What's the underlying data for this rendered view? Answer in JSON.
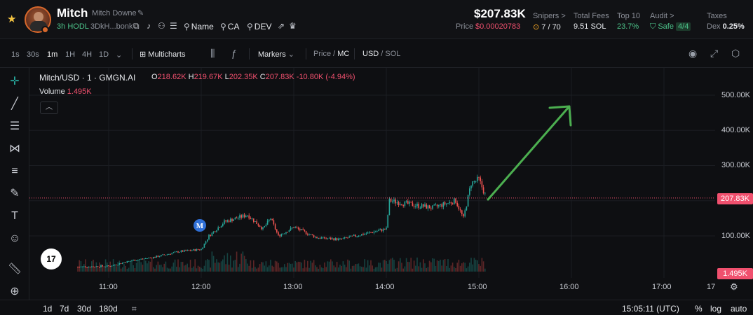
{
  "header": {
    "token_name": "Mitch",
    "token_fullname": "Mitch Downe",
    "age": "3h",
    "hodl": "HODL",
    "address": "3DkH...bonk",
    "links": [
      "Name",
      "CA",
      "DEV"
    ],
    "market_cap": "$207.83K",
    "price_label": "Price",
    "price_value": "$0.00020783",
    "stats": [
      {
        "label": "Snipers >",
        "value": "7 / 70"
      },
      {
        "label": "Total Fees",
        "value": "9.51 SOL"
      },
      {
        "label": "Top 10",
        "value": "23.7%"
      },
      {
        "label": "Audit >",
        "value": "Safe",
        "badge": "4/4"
      },
      {
        "label": "Taxes",
        "value_prefix": "Dex",
        "value": "0.25%"
      }
    ]
  },
  "toolbar": {
    "timeframes": [
      "1s",
      "30s",
      "1m",
      "1H",
      "4H",
      "1D"
    ],
    "active_timeframe": "1m",
    "multicharts": "Multicharts",
    "markers": "Markers",
    "price_mc": {
      "dim": "Price /",
      "active": "MC"
    },
    "usd_sol": {
      "active": "USD",
      "dim": "/ SOL"
    }
  },
  "chart": {
    "title": "Mitch/USD · 1 · GMGN.AI",
    "ohlc": {
      "o": "218.62K",
      "h": "219.67K",
      "l": "202.35K",
      "c": "207.83K",
      "change": "-10.80K (-4.94%)"
    },
    "volume_label": "Volume",
    "volume_value": "1.495K",
    "marker_letter": "M",
    "tv_logo": "17",
    "y_ticks": [
      "500.00K",
      "400.00K",
      "300.00K",
      "100.00K"
    ],
    "last_price_tag": "207.83K",
    "volume_tag": "1.495K",
    "x_ticks": [
      "11:00",
      "12:00",
      "13:00",
      "14:00",
      "15:00",
      "16:00",
      "17:00",
      "17"
    ],
    "colors": {
      "up": "#26a69a",
      "down": "#ef5350",
      "arrow": "#4caf50",
      "price_line": "#f0506e"
    }
  },
  "chart_data": {
    "type": "line",
    "title": "Mitch/USD · 1 · GMGN.AI",
    "xlabel": "",
    "ylabel": "",
    "x": [
      "10:40",
      "11:00",
      "11:15",
      "11:30",
      "11:45",
      "12:00",
      "12:05",
      "12:15",
      "12:30",
      "12:40",
      "12:45",
      "12:50",
      "13:00",
      "13:15",
      "13:30",
      "13:45",
      "14:00",
      "14:02",
      "14:15",
      "14:30",
      "14:45",
      "14:50",
      "14:55",
      "15:00",
      "15:05"
    ],
    "values": [
      12,
      14,
      30,
      40,
      55,
      62,
      100,
      140,
      160,
      120,
      150,
      100,
      125,
      95,
      90,
      105,
      120,
      200,
      190,
      180,
      200,
      150,
      250,
      260,
      207.83
    ],
    "ylim": [
      0,
      550
    ],
    "last_value": 207.83
  },
  "bottom": {
    "ranges": [
      "1d",
      "7d",
      "30d",
      "180d"
    ],
    "time": "15:05:11 (UTC)",
    "options": [
      "%",
      "log",
      "auto"
    ]
  }
}
